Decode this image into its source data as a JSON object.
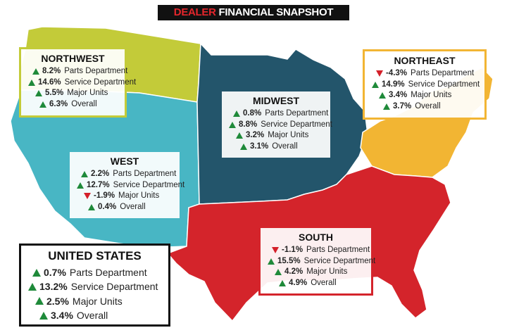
{
  "title": {
    "accent": "DEALER",
    "rest": "FINANCIAL SNAPSHOT"
  },
  "colors": {
    "northwest": "#c3cb39",
    "west": "#48b6c4",
    "midwest": "#23556b",
    "northeast": "#f2b533",
    "south": "#d4242b",
    "up_arrow": "#1f8a3a",
    "down_arrow": "#d4202a"
  },
  "regions": [
    {
      "key": "northwest",
      "name": "NORTHWEST",
      "stats": [
        {
          "value": "8.2%",
          "label": "Parts Department",
          "direction": "up"
        },
        {
          "value": "14.6%",
          "label": "Service Department",
          "direction": "up"
        },
        {
          "value": "5.5%",
          "label": "Major Units",
          "direction": "up"
        },
        {
          "value": "6.3%",
          "label": "Overall",
          "direction": "up"
        }
      ]
    },
    {
      "key": "midwest",
      "name": "MIDWEST",
      "stats": [
        {
          "value": "0.8%",
          "label": "Parts Department",
          "direction": "up"
        },
        {
          "value": "8.8%",
          "label": "Service Department",
          "direction": "up"
        },
        {
          "value": "3.2%",
          "label": "Major Units",
          "direction": "up"
        },
        {
          "value": "3.1%",
          "label": "Overall",
          "direction": "up"
        }
      ]
    },
    {
      "key": "northeast",
      "name": "NORTHEAST",
      "stats": [
        {
          "value": "-4.3%",
          "label": "Parts Department",
          "direction": "down"
        },
        {
          "value": "14.9%",
          "label": "Service Department",
          "direction": "up"
        },
        {
          "value": "3.4%",
          "label": "Major Units",
          "direction": "up"
        },
        {
          "value": "3.7%",
          "label": "Overall",
          "direction": "up"
        }
      ]
    },
    {
      "key": "west",
      "name": "WEST",
      "stats": [
        {
          "value": "2.2%",
          "label": "Parts Department",
          "direction": "up"
        },
        {
          "value": "12.7%",
          "label": "Service Department",
          "direction": "up"
        },
        {
          "value": "-1.9%",
          "label": "Major Units",
          "direction": "down"
        },
        {
          "value": "0.4%",
          "label": "Overall",
          "direction": "up"
        }
      ]
    },
    {
      "key": "south",
      "name": "SOUTH",
      "stats": [
        {
          "value": "-1.1%",
          "label": "Parts Department",
          "direction": "down"
        },
        {
          "value": "15.5%",
          "label": "Service Department",
          "direction": "up"
        },
        {
          "value": "4.2%",
          "label": "Major Units",
          "direction": "up"
        },
        {
          "value": "4.9%",
          "label": "Overall",
          "direction": "up"
        }
      ]
    },
    {
      "key": "united_states",
      "name": "UNITED STATES",
      "stats": [
        {
          "value": "0.7%",
          "label": "Parts Department",
          "direction": "up"
        },
        {
          "value": "13.2%",
          "label": "Service Department",
          "direction": "up"
        },
        {
          "value": "2.5%",
          "label": "Major Units",
          "direction": "up"
        },
        {
          "value": "3.4%",
          "label": "Overall",
          "direction": "up"
        }
      ]
    }
  ]
}
